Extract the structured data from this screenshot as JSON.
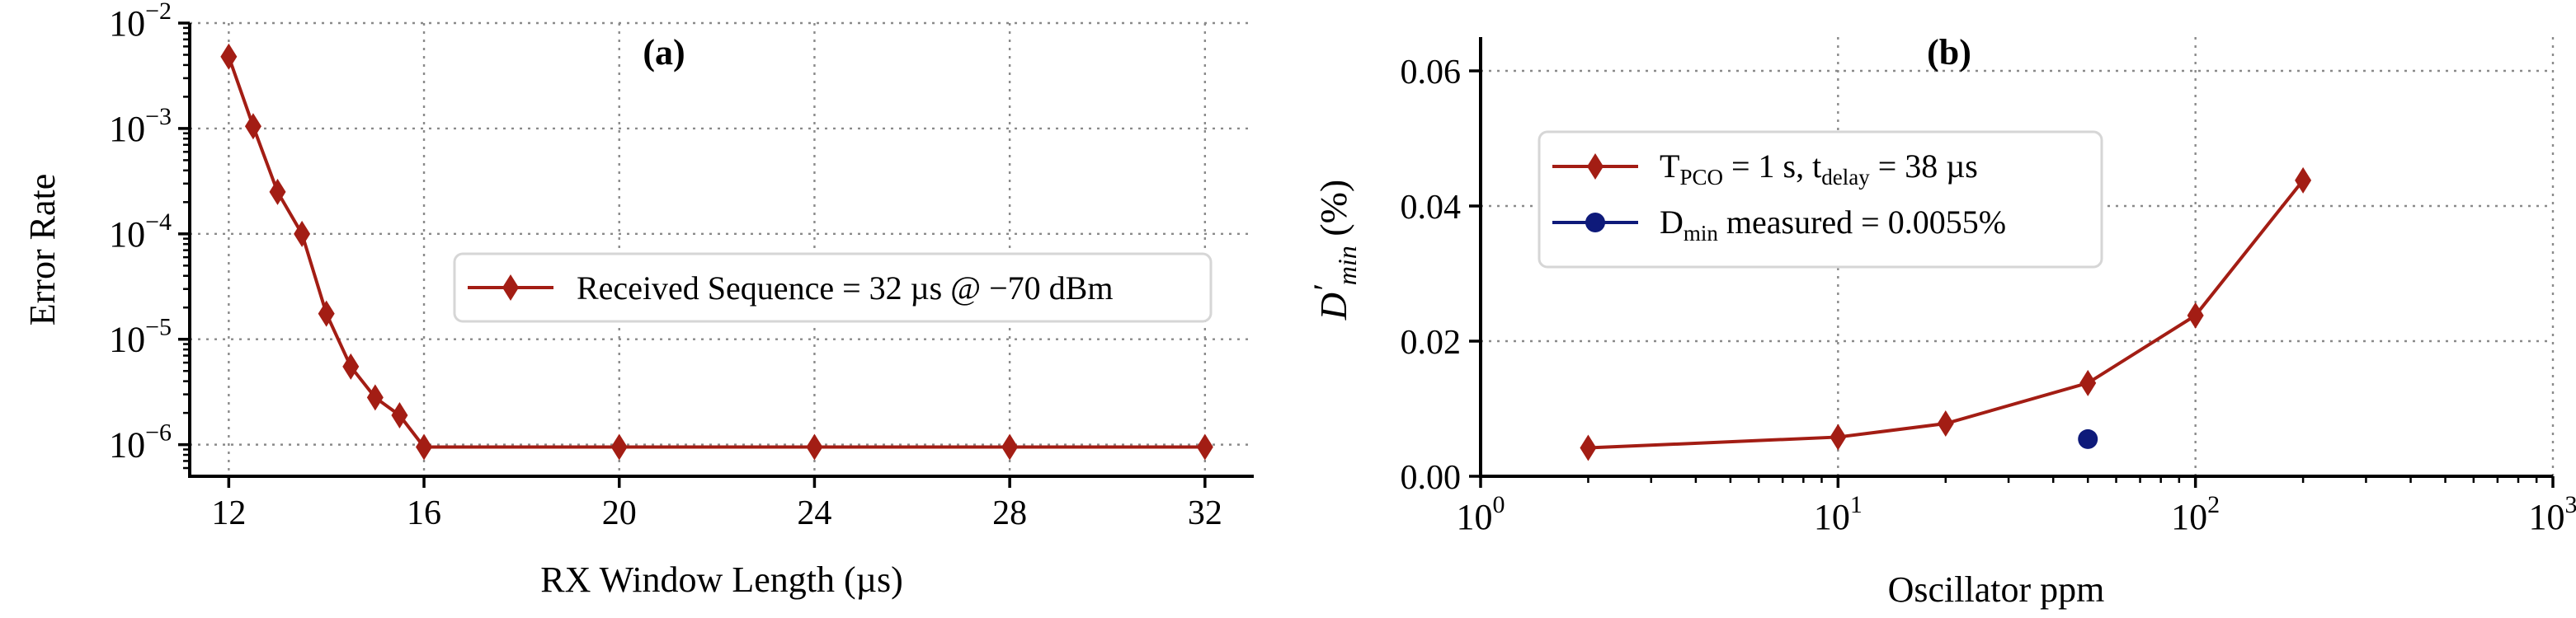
{
  "chart_data": [
    {
      "type": "line",
      "panel_label": "(a)",
      "xlabel": "RX Window Length (µs)",
      "ylabel": "Error Rate",
      "xlim": [
        11.2,
        33
      ],
      "ylim_exp": [
        -6.3,
        -2
      ],
      "yscale": "log",
      "grid": true,
      "legend_position": "center-right",
      "xticks": [
        12,
        16,
        20,
        24,
        28,
        32
      ],
      "xtick_labels": [
        "12",
        "16",
        "20",
        "24",
        "28",
        "32"
      ],
      "ytick_exps": [
        -6,
        -5,
        -4,
        -3,
        -2
      ],
      "ytick_labels": [
        {
          "base": "10",
          "exp": "−6"
        },
        {
          "base": "10",
          "exp": "−5"
        },
        {
          "base": "10",
          "exp": "−4"
        },
        {
          "base": "10",
          "exp": "−3"
        },
        {
          "base": "10",
          "exp": "−2"
        }
      ],
      "series": [
        {
          "name": "Received Sequence = 32 µs @ −70 dBm",
          "color": "#a31d14",
          "marker": "diamond",
          "x": [
            12,
            12.5,
            13,
            13.5,
            14,
            14.5,
            15,
            15.5,
            16,
            20,
            24,
            28,
            32
          ],
          "y": [
            0.0048,
            0.00105,
            0.00025,
            0.0001,
            1.75e-05,
            5.5e-06,
            2.8e-06,
            1.9e-06,
            9.5e-07,
            9.5e-07,
            9.5e-07,
            9.5e-07,
            9.5e-07
          ]
        }
      ]
    },
    {
      "type": "line",
      "panel_label": "(b)",
      "xlabel": "Oscillator ppm",
      "ylabel": {
        "main": "D",
        "prime": "′",
        "sub": "min",
        "unit": " (%)"
      },
      "xscale": "log",
      "xlim": [
        1,
        1000
      ],
      "ylim": [
        0,
        0.065
      ],
      "grid": true,
      "legend_position": "upper-left",
      "xtick_labels": [
        {
          "base": "10",
          "exp": "0"
        },
        {
          "base": "10",
          "exp": "1"
        },
        {
          "base": "10",
          "exp": "2"
        },
        {
          "base": "10",
          "exp": "3"
        }
      ],
      "yticks": [
        0,
        0.02,
        0.04,
        0.06
      ],
      "ytick_labels": [
        "0.00",
        "0.02",
        "0.04",
        "0.06"
      ],
      "series": [
        {
          "name": "T_PCO = 1 s, t_delay = 38 µs",
          "legend": {
            "p1": "T",
            "s1": "PCO",
            "p2": " = 1 s, t",
            "s2": "delay",
            "p3": " = 38 µs"
          },
          "color": "#a31d14",
          "marker": "diamond",
          "x": [
            2,
            10,
            20,
            50,
            100,
            200
          ],
          "y": [
            0.0042,
            0.0058,
            0.0078,
            0.0138,
            0.0238,
            0.0438
          ]
        },
        {
          "name": "D_min measured = 0.0055%",
          "legend": {
            "p1": "D",
            "s1": "min",
            "p2": " measured = 0.0055%"
          },
          "color": "#0e1a7a",
          "marker": "circle",
          "x": [
            50
          ],
          "y": [
            0.0055
          ]
        }
      ]
    }
  ]
}
